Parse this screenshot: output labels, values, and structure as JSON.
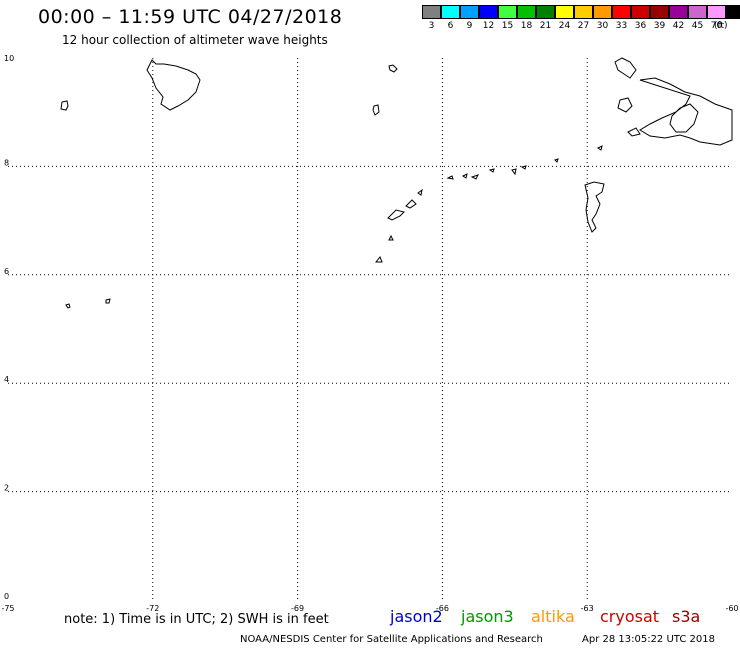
{
  "header": {
    "title": "00:00 – 11:59 UTC 04/27/2018",
    "subtitle": "12 hour collection of altimeter wave heights"
  },
  "legend": {
    "unit": "(ft)",
    "bins": [
      {
        "label": "3",
        "color": "#808080"
      },
      {
        "label": "6",
        "color": "#00ffff"
      },
      {
        "label": "9",
        "color": "#00a0ff"
      },
      {
        "label": "12",
        "color": "#0000ff"
      },
      {
        "label": "15",
        "color": "#40ff40"
      },
      {
        "label": "18",
        "color": "#00c000"
      },
      {
        "label": "21",
        "color": "#008000"
      },
      {
        "label": "24",
        "color": "#ffff00"
      },
      {
        "label": "27",
        "color": "#ffcc00"
      },
      {
        "label": "30",
        "color": "#ff9900"
      },
      {
        "label": "33",
        "color": "#ff0000"
      },
      {
        "label": "36",
        "color": "#cc0000"
      },
      {
        "label": "39",
        "color": "#990000"
      },
      {
        "label": "42",
        "color": "#990099"
      },
      {
        "label": "45",
        "color": "#cc66cc"
      },
      {
        "label": "70",
        "color": "#ff99ff"
      },
      {
        "label": "",
        "color": "#000000"
      }
    ]
  },
  "map": {
    "lat_ticks": [
      "0",
      "2",
      "4",
      "6",
      "8",
      "10"
    ],
    "lon_ticks": [
      "-75",
      "-72",
      "-69",
      "-66",
      "-63",
      "-60"
    ],
    "lon_range": [
      -75,
      -60
    ],
    "lat_range": [
      0,
      10
    ]
  },
  "note": "note: 1) Time is in UTC; 2) SWH is in feet",
  "satellites": [
    {
      "name": "jason2",
      "color": "#0000cc"
    },
    {
      "name": "jason3",
      "color": "#009900"
    },
    {
      "name": "altika",
      "color": "#ff9900"
    },
    {
      "name": "cryosat",
      "color": "#cc0000"
    },
    {
      "name": "s3a",
      "color": "#990000"
    }
  ],
  "footer": {
    "credit": "NOAA/NESDIS Center for Satellite Applications and Research",
    "timestamp": "Apr 28 13:05:22 UTC 2018"
  }
}
